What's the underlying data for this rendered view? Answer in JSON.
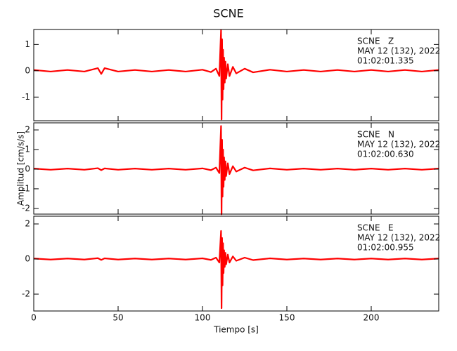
{
  "chart_data": [
    {
      "type": "line",
      "title": "SCNE",
      "annotation": [
        "SCNE   Z",
        "MAY 12 (132), 2022",
        "01:02:01.335"
      ],
      "x": [
        0,
        10,
        20,
        30,
        38,
        40,
        42,
        50,
        60,
        70,
        80,
        90,
        100,
        105,
        108,
        110,
        111,
        111.3,
        111.6,
        111.9,
        112.2,
        112.5,
        112.8,
        113.2,
        113.6,
        114,
        115,
        116,
        118,
        120,
        125,
        130,
        140,
        150,
        160,
        170,
        180,
        190,
        200,
        210,
        220,
        230,
        240
      ],
      "values": [
        0.03,
        -0.03,
        0.03,
        -0.03,
        0.1,
        -0.12,
        0.1,
        -0.03,
        0.03,
        -0.03,
        0.03,
        -0.03,
        0.04,
        -0.05,
        0.08,
        -0.2,
        1.55,
        -1.85,
        1.2,
        -1.1,
        0.8,
        -0.7,
        0.5,
        -0.45,
        0.35,
        -0.3,
        0.25,
        -0.2,
        0.15,
        -0.1,
        0.08,
        -0.06,
        0.04,
        -0.03,
        0.03,
        -0.03,
        0.03,
        -0.03,
        0.03,
        -0.03,
        0.03,
        -0.03,
        0.03
      ],
      "color": "#ff0000",
      "xlim": [
        0,
        240
      ],
      "xticks": [
        0,
        50,
        100,
        150,
        200
      ],
      "ylim": [
        -1.9,
        1.57
      ],
      "yticks": [
        -1,
        0,
        1
      ]
    },
    {
      "type": "line",
      "y_label": "Amplitud [cm/s/s]",
      "annotation": [
        "SCNE   N",
        "MAY 12 (132), 2022",
        "01:02:00.630"
      ],
      "x": [
        0,
        10,
        20,
        30,
        38,
        40,
        42,
        50,
        60,
        70,
        80,
        90,
        100,
        105,
        108,
        110,
        111,
        111.3,
        111.6,
        111.9,
        112.2,
        112.5,
        112.8,
        113.2,
        113.6,
        114,
        115,
        116,
        118,
        120,
        125,
        130,
        140,
        150,
        160,
        170,
        180,
        190,
        200,
        210,
        220,
        230,
        240
      ],
      "values": [
        0.03,
        -0.03,
        0.03,
        -0.03,
        0.05,
        -0.05,
        0.04,
        -0.03,
        0.03,
        -0.03,
        0.03,
        -0.03,
        0.04,
        -0.05,
        0.08,
        -0.2,
        2.2,
        -2.3,
        1.5,
        -1.4,
        1.0,
        -0.9,
        0.6,
        -0.55,
        0.4,
        -0.35,
        0.3,
        -0.25,
        0.15,
        -0.12,
        0.08,
        -0.06,
        0.04,
        -0.03,
        0.03,
        -0.03,
        0.03,
        -0.03,
        0.03,
        -0.03,
        0.03,
        -0.03,
        0.03
      ],
      "color": "#ff0000",
      "xlim": [
        0,
        240
      ],
      "xticks": [
        0,
        50,
        100,
        150,
        200
      ],
      "ylim": [
        -2.29,
        2.36
      ],
      "yticks": [
        -2,
        -1,
        0,
        1,
        2
      ]
    },
    {
      "type": "line",
      "x_label": "Tiempo [s]",
      "annotation": [
        "SCNE   E",
        "MAY 12 (132), 2022",
        "01:02:00.955"
      ],
      "x": [
        0,
        10,
        20,
        30,
        38,
        40,
        42,
        50,
        60,
        70,
        80,
        90,
        100,
        105,
        108,
        110,
        111,
        111.3,
        111.6,
        111.9,
        112.2,
        112.5,
        112.8,
        113.2,
        113.6,
        114,
        115,
        116,
        118,
        120,
        125,
        130,
        140,
        150,
        160,
        170,
        180,
        190,
        200,
        210,
        220,
        230,
        240
      ],
      "values": [
        0.03,
        -0.03,
        0.03,
        -0.03,
        0.05,
        -0.05,
        0.04,
        -0.03,
        0.03,
        -0.03,
        0.03,
        -0.03,
        0.04,
        -0.05,
        0.08,
        -0.2,
        1.6,
        -2.8,
        1.2,
        -1.5,
        0.9,
        -0.8,
        0.5,
        -0.45,
        0.35,
        -0.3,
        0.25,
        -0.2,
        0.15,
        -0.1,
        0.08,
        -0.06,
        0.04,
        -0.03,
        0.03,
        -0.03,
        0.03,
        -0.03,
        0.03,
        -0.03,
        0.03,
        -0.03,
        0.03
      ],
      "color": "#ff0000",
      "xlim": [
        0,
        240
      ],
      "xticks": [
        0,
        50,
        100,
        150,
        200
      ],
      "ylim": [
        -2.96,
        2.44
      ],
      "yticks": [
        -2,
        0,
        2
      ]
    }
  ]
}
